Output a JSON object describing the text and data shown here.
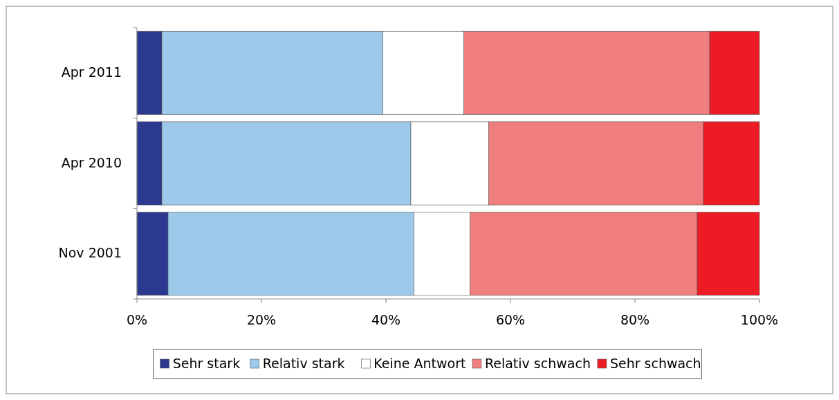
{
  "chart_data": {
    "type": "bar",
    "orientation": "horizontal",
    "stacked": true,
    "categories": [
      "Apr 2011",
      "Apr 2010",
      "Nov 2001"
    ],
    "series": [
      {
        "name": "Sehr stark",
        "color": "#2b3990",
        "values": [
          4,
          4,
          5
        ]
      },
      {
        "name": "Relativ stark",
        "color": "#9dc9ea",
        "values": [
          35.5,
          40,
          39.5
        ]
      },
      {
        "name": "Keine Antwort",
        "color": "#ffffff",
        "values": [
          13,
          12.5,
          9
        ]
      },
      {
        "name": "Relativ schwach",
        "color": "#f17e7e",
        "values": [
          39.5,
          34.5,
          36.5
        ]
      },
      {
        "name": "Sehr schwach",
        "color": "#ed1c24",
        "values": [
          8,
          9,
          10
        ]
      }
    ],
    "xlim": [
      0,
      100
    ],
    "xticks": [
      {
        "value": 0,
        "label": "0%"
      },
      {
        "value": 20,
        "label": "20%"
      },
      {
        "value": 40,
        "label": "40%"
      },
      {
        "value": 60,
        "label": "60%"
      },
      {
        "value": 80,
        "label": "80%"
      },
      {
        "value": 100,
        "label": "100%"
      }
    ],
    "grid": false,
    "legend": "bottom"
  }
}
